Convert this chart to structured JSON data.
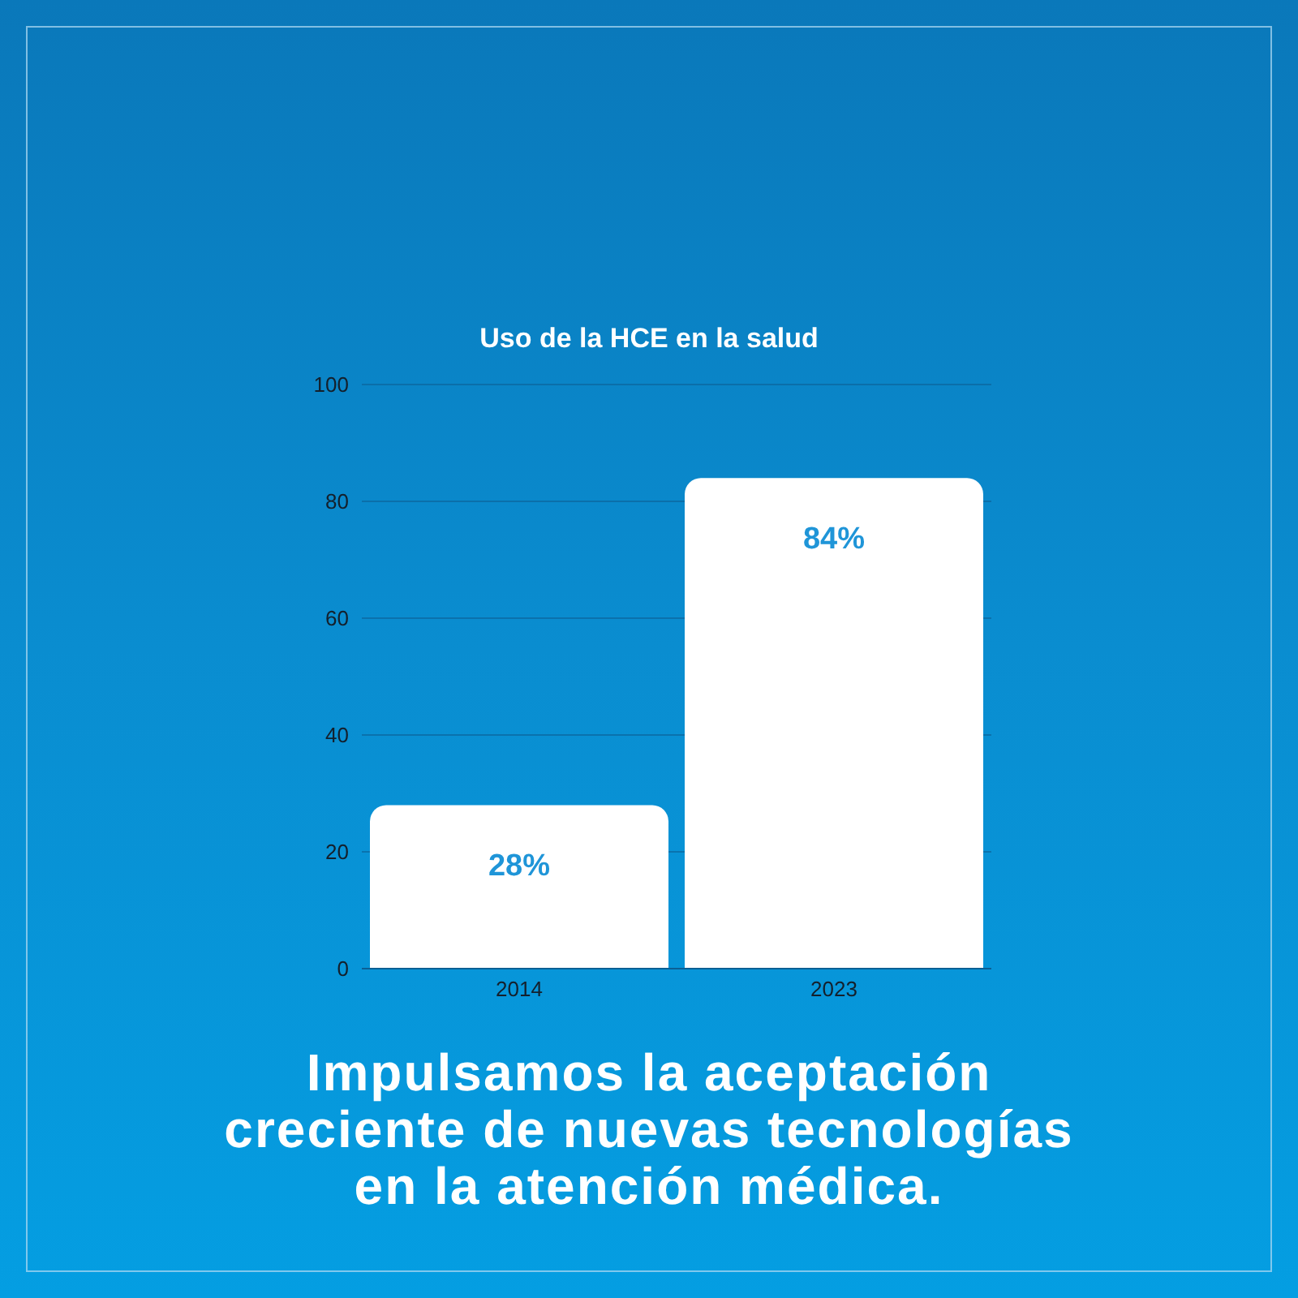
{
  "chart_data": {
    "type": "bar",
    "title": "Uso de la HCE en la salud",
    "categories": [
      "2014",
      "2023"
    ],
    "values": [
      28,
      84
    ],
    "color": "#ffffff",
    "value_labels": [
      "28%",
      "84%"
    ],
    "ylim": [
      0,
      100
    ],
    "yticks": [
      0,
      20,
      40,
      60,
      80,
      100
    ],
    "grid": "y",
    "annotations": [
      "Impulsamos la aceptación creciente de nuevas tecnologías en la atención médica."
    ]
  }
}
